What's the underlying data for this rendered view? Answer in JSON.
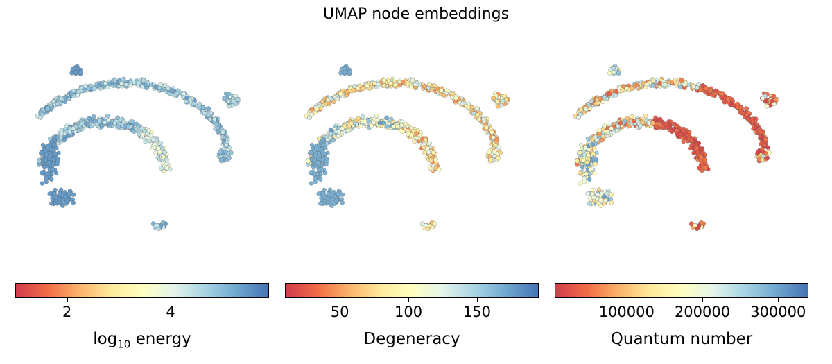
{
  "title": "UMAP node embeddings",
  "colormap": [
    "#d13b4b",
    "#f06c45",
    "#fbb36a",
    "#fee99a",
    "#ffffbf",
    "#e4f4ea",
    "#a7d4e4",
    "#6fa7cf",
    "#4574b4"
  ],
  "chart_data": [
    {
      "type": "scatter",
      "title": "",
      "colorbar_label": "log",
      "colorbar_label_sub": "10",
      "colorbar_label_rest": " energy",
      "color_range": [
        1.0,
        5.9
      ],
      "ticks": [
        2,
        4
      ],
      "tick_labels": [
        "2",
        "4"
      ],
      "dominant_color_value": 4.6
    },
    {
      "type": "scatter",
      "title": "",
      "colorbar_label": "Degeneracy",
      "color_range": [
        10,
        195
      ],
      "ticks": [
        50,
        100,
        150
      ],
      "tick_labels": [
        "50",
        "100",
        "150"
      ],
      "dominant_color_value": 100
    },
    {
      "type": "scatter",
      "title": "",
      "colorbar_label": "Quantum number",
      "color_range": [
        5000,
        340000
      ],
      "ticks": [
        100000,
        200000,
        300000
      ],
      "tick_labels": [
        "100000",
        "200000",
        "300000"
      ],
      "dominant_color_value": 40000
    }
  ]
}
